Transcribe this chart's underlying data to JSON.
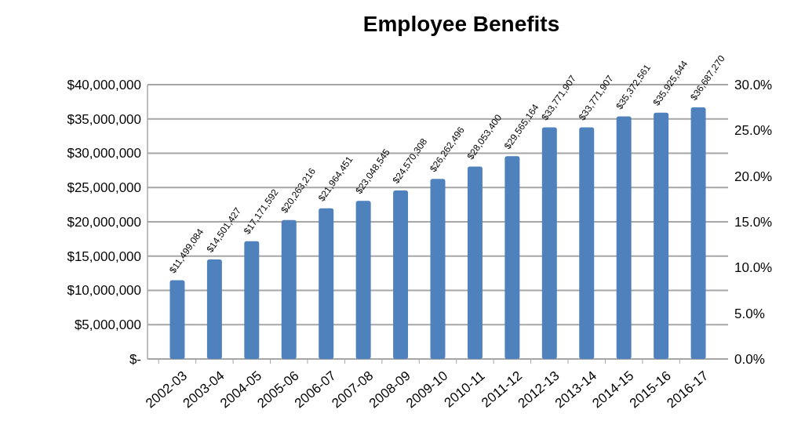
{
  "chart_data": {
    "type": "bar",
    "title": "Employee Benefits",
    "categories": [
      "2002-03",
      "2003-04",
      "2004-05",
      "2005-06",
      "2006-07",
      "2007-08",
      "2008-09",
      "2009-10",
      "2010-11",
      "2011-12",
      "2012-13",
      "2013-14",
      "2014-15",
      "2015-16",
      "2016-17"
    ],
    "values": [
      11499084,
      14501427,
      17171592,
      20263216,
      21964451,
      23048545,
      24570308,
      26262496,
      28053400,
      29565164,
      33771907,
      33771907,
      35372561,
      35925644,
      36687270
    ],
    "value_labels": [
      "$11,499,084",
      "$14,501,427",
      "$17,171,592",
      "$20,263,216",
      "$21,964,451",
      "$23,048,545",
      "$24,570,308",
      "$26,262,496",
      "$28,053,400",
      "$29,565,164",
      "$33,771,907",
      "$33,771,907",
      "$35,372,561",
      "$35,925,644",
      "$36,687,270"
    ],
    "color": "#4f81bd",
    "ylim": [
      0,
      40000000
    ],
    "yticks": [
      {
        "value": 0,
        "label": "$-"
      },
      {
        "value": 5000000,
        "label": "$5,000,000"
      },
      {
        "value": 10000000,
        "label": "$10,000,000"
      },
      {
        "value": 15000000,
        "label": "$15,000,000"
      },
      {
        "value": 20000000,
        "label": "$20,000,000"
      },
      {
        "value": 25000000,
        "label": "$25,000,000"
      },
      {
        "value": 30000000,
        "label": "$30,000,000"
      },
      {
        "value": 35000000,
        "label": "$35,000,000"
      },
      {
        "value": 40000000,
        "label": "$40,000,000"
      }
    ],
    "y2lim": [
      0,
      30
    ],
    "y2ticks": [
      {
        "value": 0,
        "label": "0.0%"
      },
      {
        "value": 5,
        "label": "5.0%"
      },
      {
        "value": 10,
        "label": "10.0%"
      },
      {
        "value": 15,
        "label": "15.0%"
      },
      {
        "value": 20,
        "label": "20.0%"
      },
      {
        "value": 25,
        "label": "25.0%"
      },
      {
        "value": 30,
        "label": "30.0%"
      }
    ],
    "grid": "y"
  }
}
